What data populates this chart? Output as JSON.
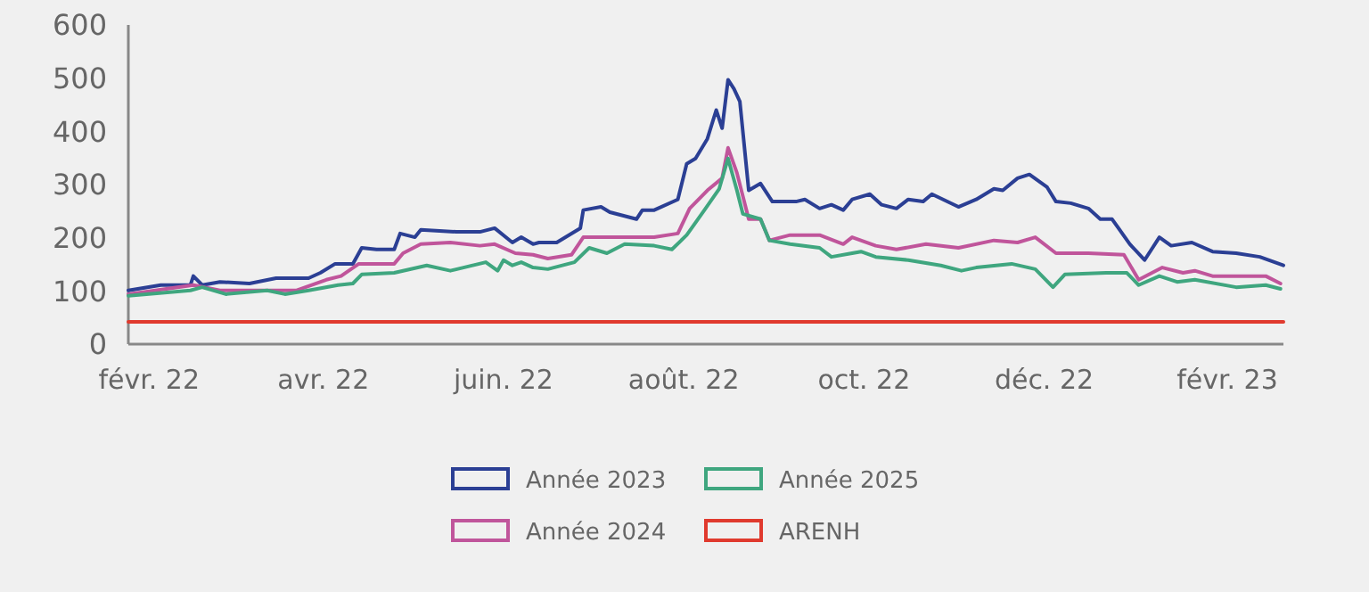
{
  "chart_data": {
    "type": "line",
    "xlim": [
      "2022-01-25",
      "2023-02-20"
    ],
    "xticks": [
      {
        "value": "2022-02-01",
        "label": "févr. 22"
      },
      {
        "value": "2022-04-01",
        "label": "avr. 22"
      },
      {
        "value": "2022-06-01",
        "label": "juin. 22"
      },
      {
        "value": "2022-08-01",
        "label": "août. 22"
      },
      {
        "value": "2022-10-01",
        "label": "oct. 22"
      },
      {
        "value": "2022-12-01",
        "label": "déc. 22"
      },
      {
        "value": "2023-02-01",
        "label": "févr. 23"
      }
    ],
    "ylim": [
      0,
      600
    ],
    "yticks": [
      0,
      100,
      200,
      300,
      400,
      500,
      600
    ],
    "grid": false,
    "legend": "bottom",
    "series": [
      {
        "name": "Année 2023",
        "color": "#2b3f94",
        "x": [
          "2022-01-25",
          "2022-02-05",
          "2022-02-15",
          "2022-02-16",
          "2022-02-19",
          "2022-02-25",
          "2022-03-07",
          "2022-03-16",
          "2022-03-27",
          "2022-03-31",
          "2022-04-05",
          "2022-04-11",
          "2022-04-14",
          "2022-04-19",
          "2022-04-25",
          "2022-04-27",
          "2022-05-02",
          "2022-05-04",
          "2022-05-16",
          "2022-05-24",
          "2022-05-29",
          "2022-06-04",
          "2022-06-07",
          "2022-06-11",
          "2022-06-13",
          "2022-06-19",
          "2022-06-27",
          "2022-06-28",
          "2022-07-04",
          "2022-07-07",
          "2022-07-16",
          "2022-07-18",
          "2022-07-22",
          "2022-07-30",
          "2022-08-02",
          "2022-08-05",
          "2022-08-09",
          "2022-08-12",
          "2022-08-14",
          "2022-08-16",
          "2022-08-18",
          "2022-08-20",
          "2022-08-23",
          "2022-08-27",
          "2022-08-31",
          "2022-09-04",
          "2022-09-08",
          "2022-09-11",
          "2022-09-16",
          "2022-09-20",
          "2022-09-24",
          "2022-09-27",
          "2022-10-03",
          "2022-10-07",
          "2022-10-12",
          "2022-10-16",
          "2022-10-21",
          "2022-10-24",
          "2022-11-02",
          "2022-11-08",
          "2022-11-14",
          "2022-11-17",
          "2022-11-22",
          "2022-11-26",
          "2022-12-02",
          "2022-12-05",
          "2022-12-10",
          "2022-12-16",
          "2022-12-20",
          "2022-12-24",
          "2022-12-30",
          "2023-01-04",
          "2023-01-09",
          "2023-01-13",
          "2023-01-20",
          "2023-01-27",
          "2023-02-04",
          "2023-02-12",
          "2023-02-20"
        ],
        "values": [
          101,
          111,
          111,
          128,
          111,
          117,
          114,
          124,
          124,
          134,
          151,
          151,
          181,
          178,
          178,
          208,
          201,
          215,
          211,
          211,
          218,
          191,
          201,
          188,
          191,
          191,
          218,
          252,
          258,
          248,
          235,
          252,
          252,
          272,
          339,
          349,
          386,
          440,
          406,
          497,
          480,
          456,
          289,
          302,
          268,
          268,
          268,
          272,
          255,
          262,
          252,
          272,
          282,
          262,
          255,
          272,
          268,
          282,
          258,
          272,
          292,
          289,
          312,
          319,
          295,
          268,
          265,
          255,
          235,
          235,
          188,
          158,
          201,
          185,
          191,
          174,
          171,
          164,
          148
        ]
      },
      {
        "name": "Année 2024",
        "color": "#c0559b",
        "x": [
          "2022-01-25",
          "2022-02-16",
          "2022-02-25",
          "2022-03-13",
          "2022-03-23",
          "2022-04-02",
          "2022-04-07",
          "2022-04-13",
          "2022-04-25",
          "2022-04-28",
          "2022-05-04",
          "2022-05-14",
          "2022-05-24",
          "2022-05-29",
          "2022-06-05",
          "2022-06-11",
          "2022-06-16",
          "2022-06-24",
          "2022-06-28",
          "2022-07-10",
          "2022-07-22",
          "2022-07-30",
          "2022-08-03",
          "2022-08-09",
          "2022-08-14",
          "2022-08-16",
          "2022-08-19",
          "2022-08-23",
          "2022-08-27",
          "2022-08-30",
          "2022-09-06",
          "2022-09-16",
          "2022-09-24",
          "2022-09-27",
          "2022-10-05",
          "2022-10-12",
          "2022-10-22",
          "2022-11-02",
          "2022-11-14",
          "2022-11-22",
          "2022-11-28",
          "2022-12-05",
          "2022-12-16",
          "2022-12-28",
          "2023-01-02",
          "2023-01-10",
          "2023-01-17",
          "2023-01-21",
          "2023-01-27",
          "2023-02-14",
          "2023-02-19"
        ],
        "values": [
          94,
          111,
          101,
          101,
          101,
          121,
          128,
          151,
          151,
          171,
          188,
          191,
          185,
          188,
          171,
          168,
          161,
          168,
          201,
          201,
          201,
          208,
          255,
          289,
          312,
          369,
          322,
          235,
          235,
          195,
          205,
          205,
          188,
          201,
          185,
          178,
          188,
          181,
          195,
          191,
          201,
          171,
          171,
          168,
          121,
          144,
          134,
          138,
          128,
          128,
          114
        ]
      },
      {
        "name": "Année 2025",
        "color": "#3fa67f",
        "x": [
          "2022-01-25",
          "2022-02-15",
          "2022-02-19",
          "2022-02-27",
          "2022-03-13",
          "2022-03-19",
          "2022-03-27",
          "2022-04-06",
          "2022-04-11",
          "2022-04-14",
          "2022-04-25",
          "2022-05-06",
          "2022-05-14",
          "2022-05-26",
          "2022-05-30",
          "2022-06-01",
          "2022-06-04",
          "2022-06-07",
          "2022-06-11",
          "2022-06-16",
          "2022-06-25",
          "2022-06-30",
          "2022-07-06",
          "2022-07-12",
          "2022-07-22",
          "2022-07-28",
          "2022-08-02",
          "2022-08-08",
          "2022-08-13",
          "2022-08-16",
          "2022-08-19",
          "2022-08-21",
          "2022-08-27",
          "2022-08-30",
          "2022-09-06",
          "2022-09-16",
          "2022-09-20",
          "2022-09-27",
          "2022-09-30",
          "2022-10-05",
          "2022-10-16",
          "2022-10-27",
          "2022-11-03",
          "2022-11-08",
          "2022-11-20",
          "2022-11-28",
          "2022-12-04",
          "2022-12-08",
          "2022-12-22",
          "2022-12-29",
          "2023-01-02",
          "2023-01-09",
          "2023-01-15",
          "2023-01-21",
          "2023-02-04",
          "2023-02-14",
          "2023-02-19"
        ],
        "values": [
          91,
          101,
          107,
          94,
          101,
          94,
          101,
          111,
          114,
          131,
          134,
          148,
          138,
          154,
          138,
          158,
          148,
          154,
          144,
          141,
          154,
          181,
          171,
          188,
          185,
          178,
          205,
          252,
          292,
          349,
          289,
          245,
          235,
          195,
          188,
          181,
          164,
          171,
          174,
          164,
          158,
          148,
          138,
          144,
          151,
          141,
          107,
          131,
          134,
          134,
          111,
          128,
          117,
          121,
          107,
          111,
          104
        ]
      },
      {
        "name": "ARENH",
        "color": "#e03a2e",
        "x": [
          "2022-01-25",
          "2023-02-20"
        ],
        "values": [
          42,
          42
        ]
      }
    ]
  }
}
